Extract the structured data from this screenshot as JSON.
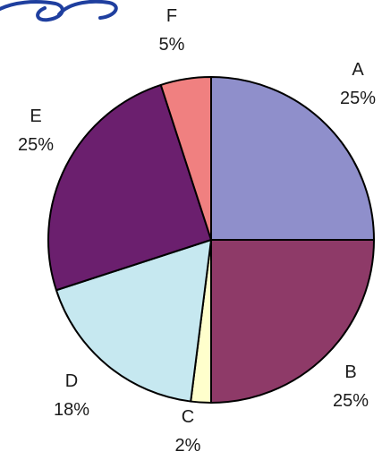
{
  "chart_data": {
    "type": "pie",
    "title": "",
    "start_angle_deg": 90,
    "direction": "clockwise",
    "slices": [
      {
        "label": "A",
        "value": 25,
        "value_label": "25%",
        "color": "#8f8fcb"
      },
      {
        "label": "B",
        "value": 25,
        "value_label": "25%",
        "color": "#8e3a68"
      },
      {
        "label": "C",
        "value": 2,
        "value_label": "2%",
        "color": "#ffffcc"
      },
      {
        "label": "D",
        "value": 18,
        "value_label": "18%",
        "color": "#c6e8f0"
      },
      {
        "label": "E",
        "value": 25,
        "value_label": "25%",
        "color": "#6b1f6e"
      },
      {
        "label": "F",
        "value": 5,
        "value_label": "5%",
        "color": "#f08080"
      }
    ]
  },
  "colors": {
    "slice_border": "#000000",
    "label_text": "#1a1a1a",
    "corner_swash": "#1f3f9f"
  },
  "decor": {
    "corner_swash_icon": "swash-icon"
  }
}
